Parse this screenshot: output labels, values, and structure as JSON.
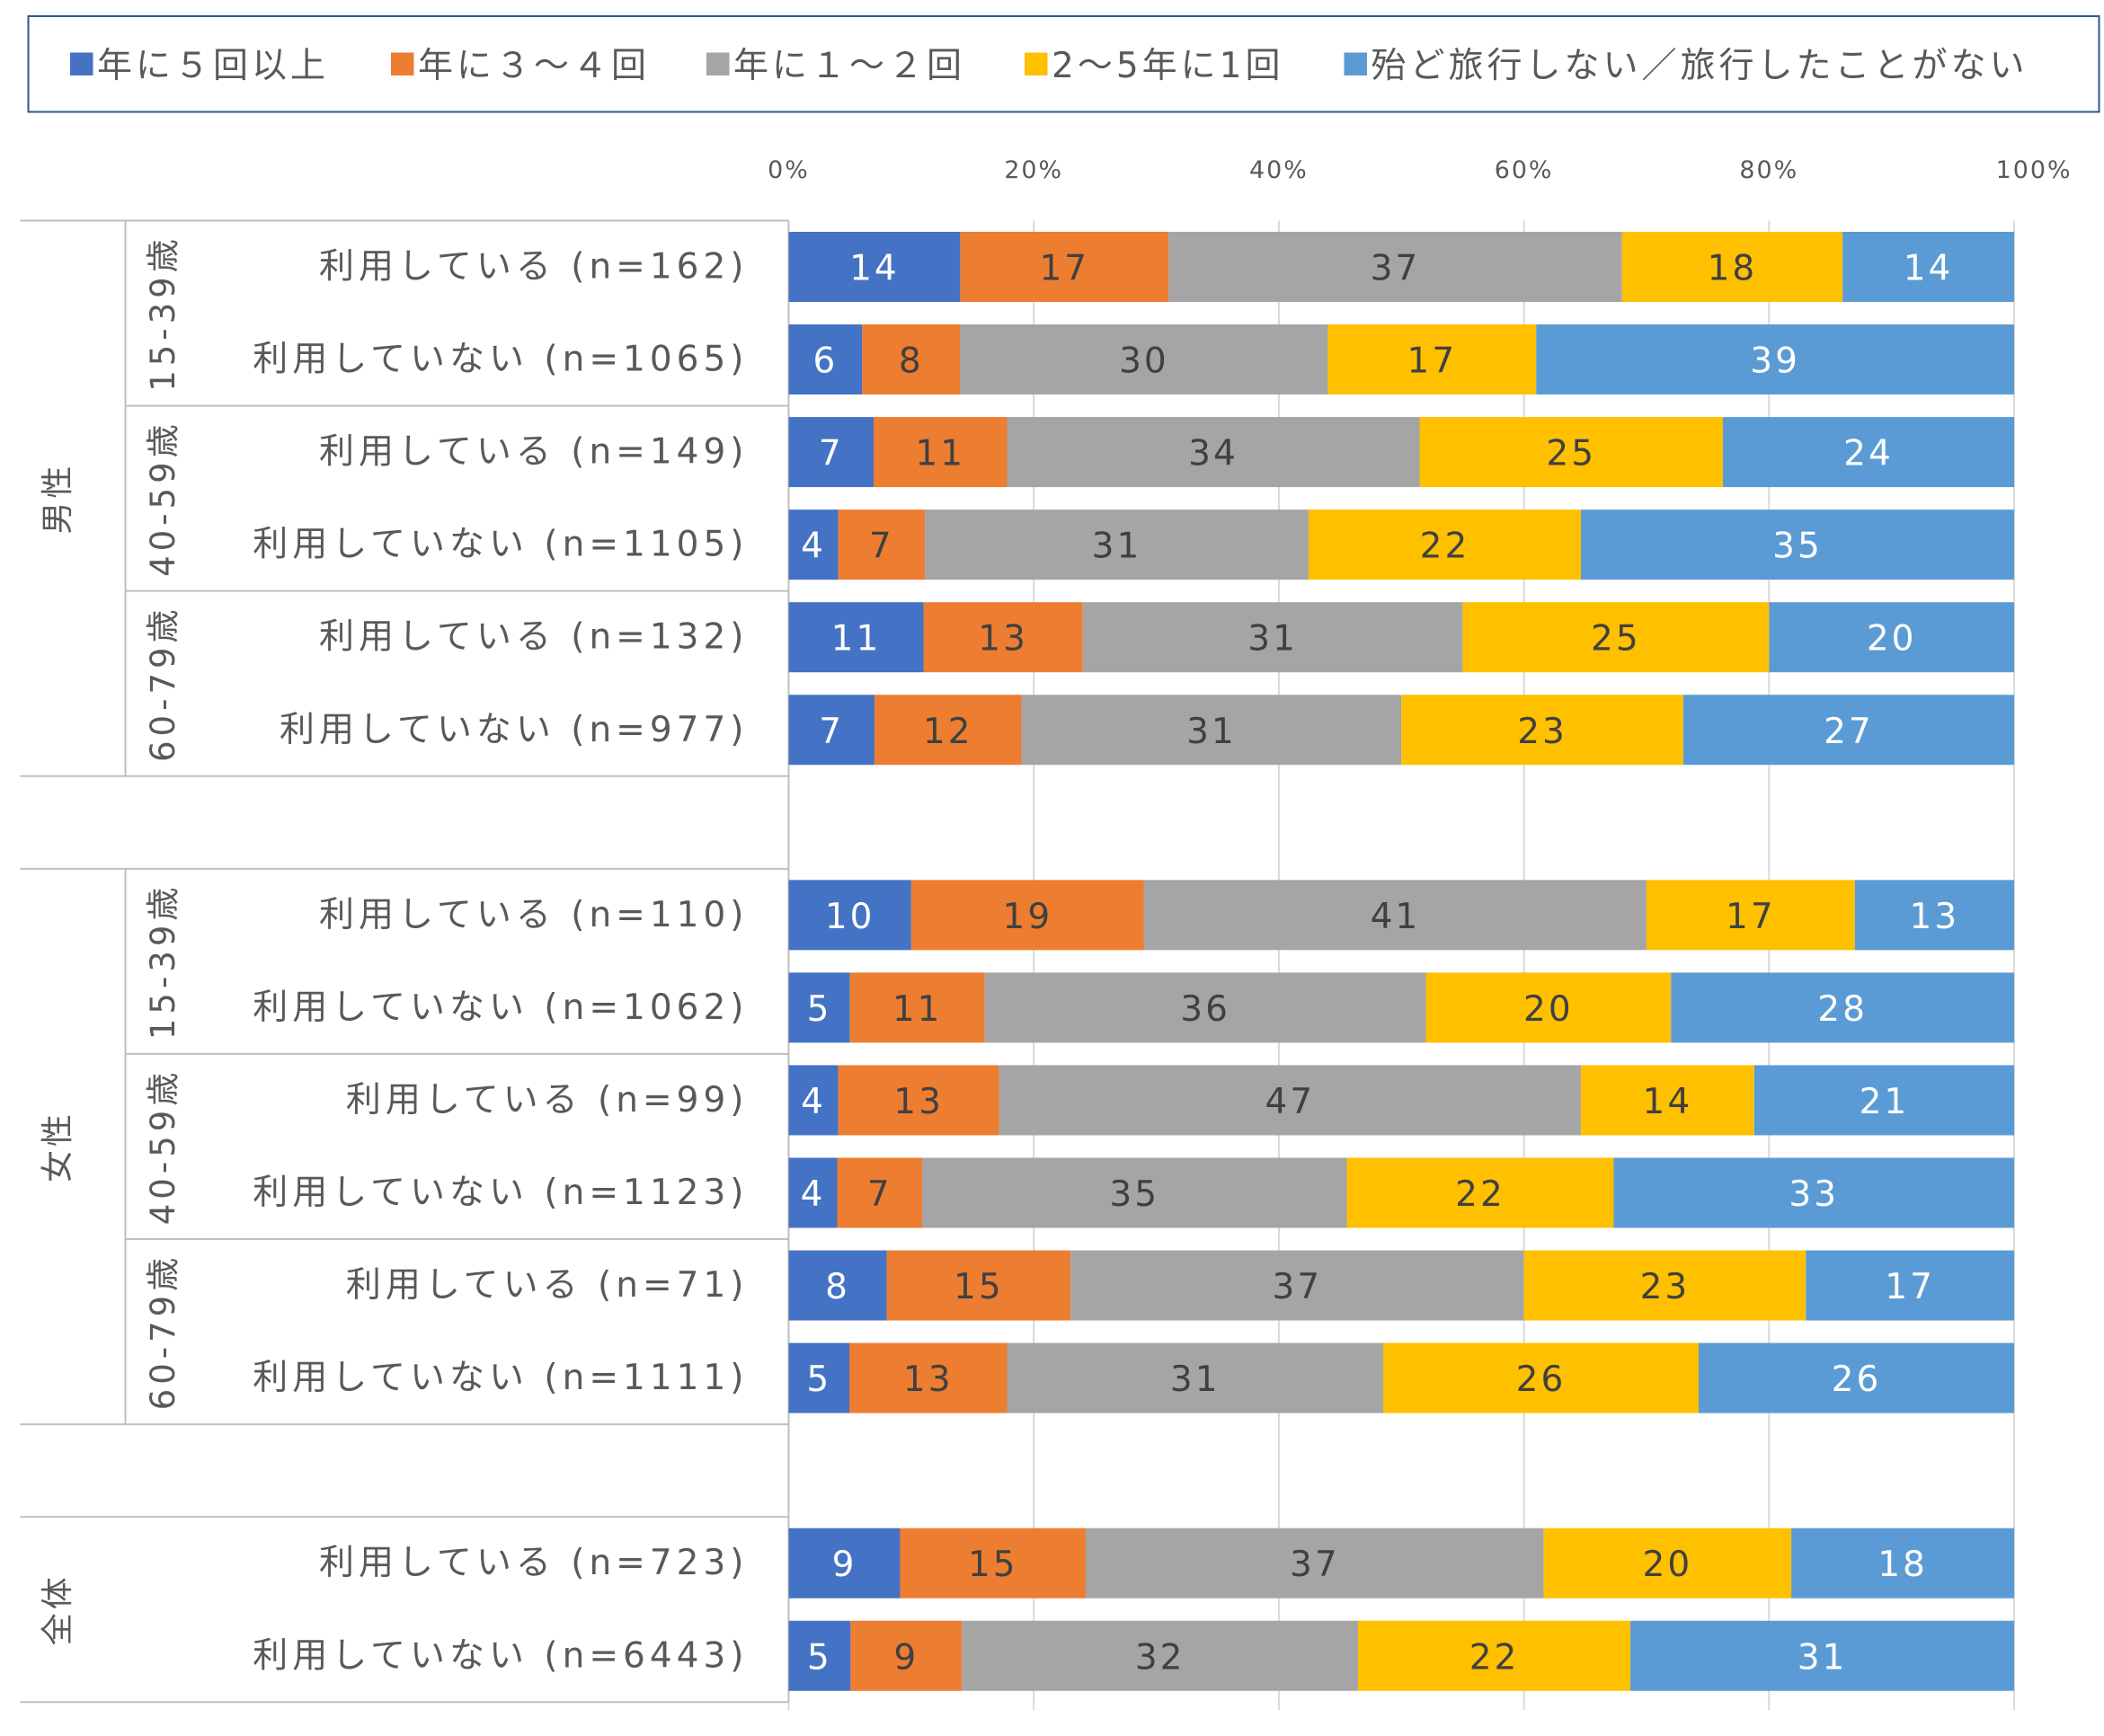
{
  "chart_data": {
    "type": "bar",
    "orientation": "horizontal",
    "stacked": "percent",
    "xlim": [
      0,
      100
    ],
    "x_ticks": [
      "0%",
      "20%",
      "40%",
      "60%",
      "80%",
      "100%"
    ],
    "grid": true,
    "legend_position": "top",
    "series": [
      {
        "name": "年に５回以上",
        "color": "#4472C4",
        "label_color": "#FFFFFF"
      },
      {
        "name": "年に３～４回",
        "color": "#ED7D31",
        "label_color": "#404040"
      },
      {
        "name": "年に１～２回",
        "color": "#A5A5A5",
        "label_color": "#404040"
      },
      {
        "name": "2～5年に1回",
        "color": "#FFC000",
        "label_color": "#404040"
      },
      {
        "name": "殆ど旅行しない／旅行したことがない",
        "color": "#5B9BD5",
        "label_color": "#FFFFFF"
      }
    ],
    "rows": [
      {
        "gender": "男性",
        "age": "15-39歳",
        "label": "利用している (n=162)",
        "values": [
          14,
          17,
          37,
          18,
          14
        ]
      },
      {
        "gender": "男性",
        "age": "15-39歳",
        "label": "利用していない (n=1065)",
        "values": [
          6,
          8,
          30,
          17,
          39
        ]
      },
      {
        "gender": "男性",
        "age": "40-59歳",
        "label": "利用している (n=149)",
        "values": [
          7,
          11,
          34,
          25,
          24
        ]
      },
      {
        "gender": "男性",
        "age": "40-59歳",
        "label": "利用していない (n=1105)",
        "values": [
          4,
          7,
          31,
          22,
          35
        ]
      },
      {
        "gender": "男性",
        "age": "60-79歳",
        "label": "利用している (n=132)",
        "values": [
          11,
          13,
          31,
          25,
          20
        ]
      },
      {
        "gender": "男性",
        "age": "60-79歳",
        "label": "利用していない (n=977)",
        "values": [
          7,
          12,
          31,
          23,
          27
        ]
      },
      {
        "gender": "女性",
        "age": "15-39歳",
        "label": "利用している (n=110)",
        "values": [
          10,
          19,
          41,
          17,
          13
        ]
      },
      {
        "gender": "女性",
        "age": "15-39歳",
        "label": "利用していない (n=1062)",
        "values": [
          5,
          11,
          36,
          20,
          28
        ]
      },
      {
        "gender": "女性",
        "age": "40-59歳",
        "label": "利用している (n=99)",
        "values": [
          4,
          13,
          47,
          14,
          21
        ]
      },
      {
        "gender": "女性",
        "age": "40-59歳",
        "label": "利用していない (n=1123)",
        "values": [
          4,
          7,
          35,
          22,
          33
        ]
      },
      {
        "gender": "女性",
        "age": "60-79歳",
        "label": "利用している (n=71)",
        "values": [
          8,
          15,
          37,
          23,
          17
        ]
      },
      {
        "gender": "女性",
        "age": "60-79歳",
        "label": "利用していない (n=1111)",
        "values": [
          5,
          13,
          31,
          26,
          26
        ]
      },
      {
        "gender": "全体",
        "age": "",
        "label": "利用している (n=723)",
        "values": [
          9,
          15,
          37,
          20,
          18
        ]
      },
      {
        "gender": "全体",
        "age": "",
        "label": "利用していない (n=6443)",
        "values": [
          5,
          9,
          32,
          22,
          31
        ]
      }
    ]
  }
}
